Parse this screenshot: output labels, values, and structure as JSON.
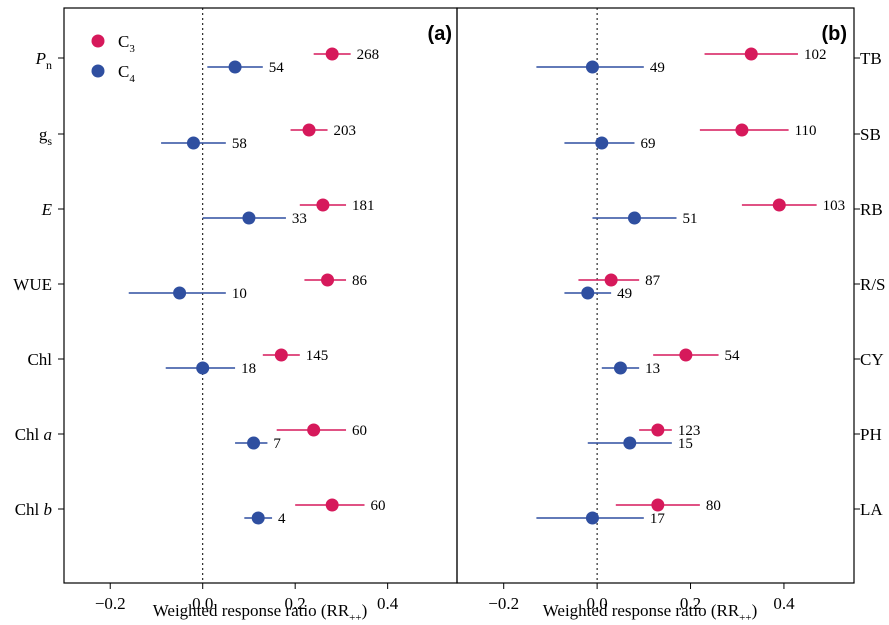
{
  "colors": {
    "c3": "#D6195B",
    "c4": "#2F4FA0"
  },
  "legend": [
    {
      "label": "C",
      "sub": "3",
      "color": "#D6195B"
    },
    {
      "label": "C",
      "sub": "4",
      "color": "#2F4FA0"
    }
  ],
  "chart_data": [
    {
      "type": "forest",
      "panel_label": "(a)",
      "xlabel": "Weighted response ratio (RR",
      "xlabel_sub": "++",
      "xlabel_close": ")",
      "xlim": [
        -0.3,
        0.55
      ],
      "xticks": [
        -0.2,
        0.0,
        0.2,
        0.4
      ],
      "xtick_labels": [
        "−0.2",
        "0.0",
        "0.2",
        "0.4"
      ],
      "reference_line": 0,
      "categories": [
        {
          "label": "P",
          "sub": "n",
          "italic": true
        },
        {
          "label": "g",
          "sub": "s",
          "italic": false
        },
        {
          "label": "E",
          "sub": "",
          "italic": true
        },
        {
          "label": "WUE",
          "sub": "",
          "italic": false
        },
        {
          "label": "Chl",
          "sub": "",
          "italic": false
        },
        {
          "label": "Chl ",
          "suffix": "a",
          "italic": false
        },
        {
          "label": "Chl ",
          "suffix": "b",
          "italic": false
        }
      ],
      "series": [
        {
          "name": "C3",
          "color": "#D6195B",
          "points": [
            {
              "mean": 0.28,
              "lo": 0.24,
              "hi": 0.32,
              "n": "268"
            },
            {
              "mean": 0.23,
              "lo": 0.19,
              "hi": 0.27,
              "n": "203"
            },
            {
              "mean": 0.26,
              "lo": 0.21,
              "hi": 0.31,
              "n": "181"
            },
            {
              "mean": 0.27,
              "lo": 0.22,
              "hi": 0.31,
              "n": "86"
            },
            {
              "mean": 0.17,
              "lo": 0.13,
              "hi": 0.21,
              "n": "145"
            },
            {
              "mean": 0.24,
              "lo": 0.16,
              "hi": 0.31,
              "n": "60"
            },
            {
              "mean": 0.28,
              "lo": 0.2,
              "hi": 0.35,
              "n": "60"
            }
          ]
        },
        {
          "name": "C4",
          "color": "#2F4FA0",
          "points": [
            {
              "mean": 0.07,
              "lo": 0.01,
              "hi": 0.13,
              "n": "54"
            },
            {
              "mean": -0.02,
              "lo": -0.09,
              "hi": 0.05,
              "n": "58"
            },
            {
              "mean": 0.1,
              "lo": 0.0,
              "hi": 0.18,
              "n": "33"
            },
            {
              "mean": -0.05,
              "lo": -0.16,
              "hi": 0.05,
              "n": "10"
            },
            {
              "mean": 0.0,
              "lo": -0.08,
              "hi": 0.07,
              "n": "18"
            },
            {
              "mean": 0.11,
              "lo": 0.07,
              "hi": 0.14,
              "n": "7"
            },
            {
              "mean": 0.12,
              "lo": 0.09,
              "hi": 0.15,
              "n": "4"
            }
          ]
        }
      ]
    },
    {
      "type": "forest",
      "panel_label": "(b)",
      "xlabel": "Weighted response ratio  (RR",
      "xlabel_sub": "++",
      "xlabel_close": ")",
      "xlim": [
        -0.3,
        0.55
      ],
      "xticks": [
        -0.2,
        0.0,
        0.2,
        0.4
      ],
      "xtick_labels": [
        "−0.2",
        "0.0",
        "0.2",
        "0.4"
      ],
      "reference_line": 0,
      "categories": [
        {
          "label": "TB"
        },
        {
          "label": "SB"
        },
        {
          "label": "RB"
        },
        {
          "label": "R/S"
        },
        {
          "label": "CY"
        },
        {
          "label": "PH"
        },
        {
          "label": "LA"
        }
      ],
      "series": [
        {
          "name": "C3",
          "color": "#D6195B",
          "points": [
            {
              "mean": 0.33,
              "lo": 0.23,
              "hi": 0.43,
              "n": "102"
            },
            {
              "mean": 0.31,
              "lo": 0.22,
              "hi": 0.41,
              "n": "110"
            },
            {
              "mean": 0.39,
              "lo": 0.31,
              "hi": 0.47,
              "n": "103"
            },
            {
              "mean": 0.03,
              "lo": -0.04,
              "hi": 0.09,
              "n": "87"
            },
            {
              "mean": 0.19,
              "lo": 0.12,
              "hi": 0.26,
              "n": "54"
            },
            {
              "mean": 0.13,
              "lo": 0.09,
              "hi": 0.16,
              "n": "123"
            },
            {
              "mean": 0.13,
              "lo": 0.04,
              "hi": 0.22,
              "n": "80"
            }
          ]
        },
        {
          "name": "C4",
          "color": "#2F4FA0",
          "points": [
            {
              "mean": -0.01,
              "lo": -0.13,
              "hi": 0.1,
              "n": "49"
            },
            {
              "mean": 0.01,
              "lo": -0.07,
              "hi": 0.08,
              "n": "69"
            },
            {
              "mean": 0.08,
              "lo": -0.01,
              "hi": 0.17,
              "n": "51"
            },
            {
              "mean": -0.02,
              "lo": -0.07,
              "hi": 0.03,
              "n": "49"
            },
            {
              "mean": 0.05,
              "lo": 0.01,
              "hi": 0.09,
              "n": "13"
            },
            {
              "mean": 0.07,
              "lo": -0.02,
              "hi": 0.16,
              "n": "15"
            },
            {
              "mean": -0.01,
              "lo": -0.13,
              "hi": 0.1,
              "n": "17"
            }
          ]
        }
      ]
    }
  ]
}
